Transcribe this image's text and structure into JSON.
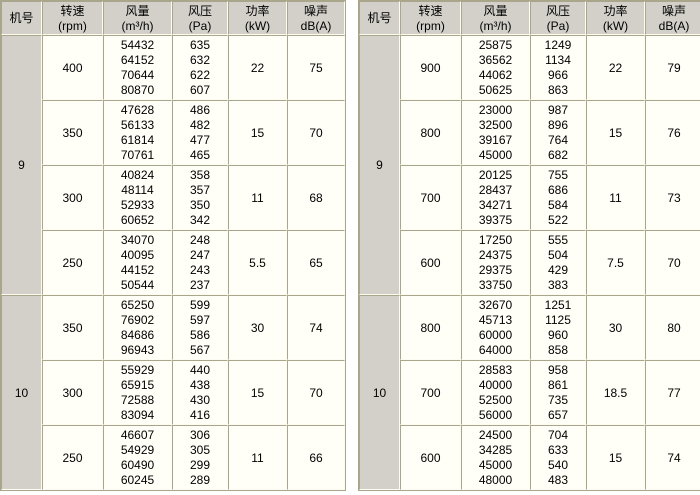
{
  "columns": {
    "machine": "机号",
    "speed": "转速",
    "speed_unit": "(rpm)",
    "airflow": "风量",
    "airflow_unit": "(m³/h)",
    "pressure": "风压",
    "pressure_unit": "(Pa)",
    "power": "功率",
    "power_unit": "(kW)",
    "noise": "噪声",
    "noise_unit": "dB(A)"
  },
  "colors": {
    "border_dark": "#a9a68b",
    "border_light": "#fcfcf2",
    "gray_bg": "#d2d0c9",
    "cell_bg": "#fffef7",
    "page_bg": "#ffffff"
  },
  "tables": [
    {
      "name": "left",
      "machines": [
        {
          "id": "9",
          "groups": [
            {
              "rpm": "400",
              "airflow": [
                "54432",
                "64152",
                "70644",
                "80870"
              ],
              "pressure": [
                "635",
                "632",
                "622",
                "607"
              ],
              "power": "22",
              "noise": "75"
            },
            {
              "rpm": "350",
              "airflow": [
                "47628",
                "56133",
                "61814",
                "70761"
              ],
              "pressure": [
                "486",
                "482",
                "477",
                "465"
              ],
              "power": "15",
              "noise": "70"
            },
            {
              "rpm": "300",
              "airflow": [
                "40824",
                "48114",
                "52933",
                "60652"
              ],
              "pressure": [
                "358",
                "357",
                "350",
                "342"
              ],
              "power": "11",
              "noise": "68"
            },
            {
              "rpm": "250",
              "airflow": [
                "34070",
                "40095",
                "44152",
                "50544"
              ],
              "pressure": [
                "248",
                "247",
                "243",
                "237"
              ],
              "power": "5.5",
              "noise": "65"
            }
          ]
        },
        {
          "id": "10",
          "groups": [
            {
              "rpm": "350",
              "airflow": [
                "65250",
                "76902",
                "84686",
                "96943"
              ],
              "pressure": [
                "599",
                "597",
                "586",
                "567"
              ],
              "power": "30",
              "noise": "74"
            },
            {
              "rpm": "300",
              "airflow": [
                "55929",
                "65915",
                "72588",
                "83094"
              ],
              "pressure": [
                "440",
                "438",
                "430",
                "416"
              ],
              "power": "15",
              "noise": "70"
            },
            {
              "rpm": "250",
              "airflow": [
                "46607",
                "54929",
                "60490",
                "60245"
              ],
              "pressure": [
                "306",
                "305",
                "299",
                "289"
              ],
              "power": "11",
              "noise": "66"
            }
          ]
        }
      ]
    },
    {
      "name": "right",
      "machines": [
        {
          "id": "9",
          "groups": [
            {
              "rpm": "900",
              "airflow": [
                "25875",
                "36562",
                "44062",
                "50625"
              ],
              "pressure": [
                "1249",
                "1134",
                "966",
                "863"
              ],
              "power": "22",
              "noise": "79"
            },
            {
              "rpm": "800",
              "airflow": [
                "23000",
                "32500",
                "39167",
                "45000"
              ],
              "pressure": [
                "987",
                "896",
                "764",
                "682"
              ],
              "power": "15",
              "noise": "76"
            },
            {
              "rpm": "700",
              "airflow": [
                "20125",
                "28437",
                "34271",
                "39375"
              ],
              "pressure": [
                "755",
                "686",
                "584",
                "522"
              ],
              "power": "11",
              "noise": "73"
            },
            {
              "rpm": "600",
              "airflow": [
                "17250",
                "24375",
                "29375",
                "33750"
              ],
              "pressure": [
                "555",
                "504",
                "429",
                "383"
              ],
              "power": "7.5",
              "noise": "70"
            }
          ]
        },
        {
          "id": "10",
          "groups": [
            {
              "rpm": "800",
              "airflow": [
                "32670",
                "45713",
                "60000",
                "64000"
              ],
              "pressure": [
                "1251",
                "1125",
                "960",
                "858"
              ],
              "power": "30",
              "noise": "80"
            },
            {
              "rpm": "700",
              "airflow": [
                "28583",
                "40000",
                "52500",
                "56000"
              ],
              "pressure": [
                "958",
                "861",
                "735",
                "657"
              ],
              "power": "18.5",
              "noise": "77"
            },
            {
              "rpm": "600",
              "airflow": [
                "24500",
                "34285",
                "45000",
                "48000"
              ],
              "pressure": [
                "704",
                "633",
                "540",
                "483"
              ],
              "power": "15",
              "noise": "74"
            }
          ]
        }
      ]
    }
  ]
}
